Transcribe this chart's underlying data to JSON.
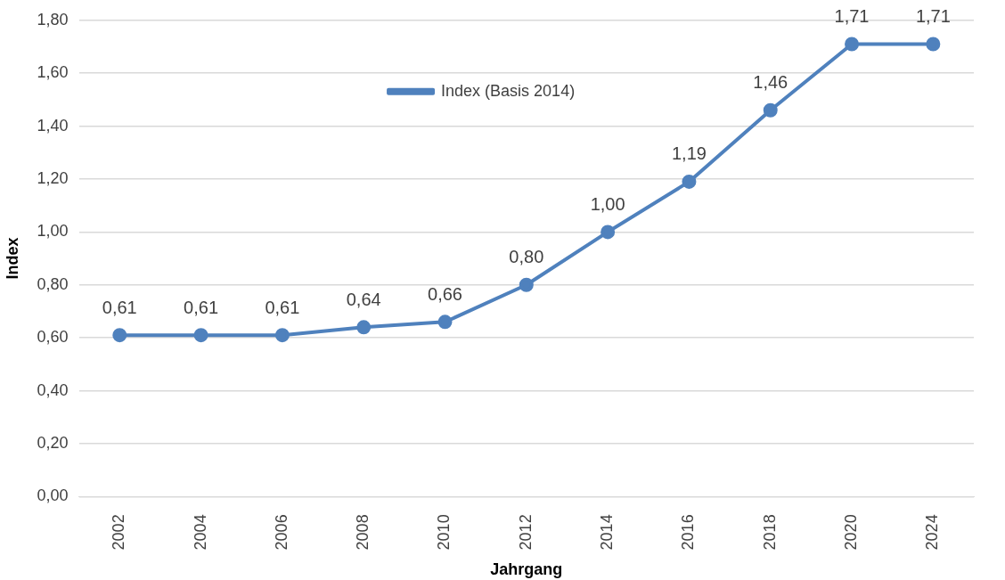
{
  "chart_data": {
    "type": "line",
    "xlabel": "Jahrgang",
    "ylabel": "Index",
    "categories": [
      "2002",
      "2004",
      "2006",
      "2008",
      "2010",
      "2012",
      "2014",
      "2016",
      "2018",
      "2020",
      "2024"
    ],
    "series": [
      {
        "name": "Index (Basis 2014)",
        "color": "#4f81bd",
        "values": [
          0.61,
          0.61,
          0.61,
          0.64,
          0.66,
          0.8,
          1.0,
          1.19,
          1.46,
          1.71,
          1.71
        ],
        "value_labels": [
          "0,61",
          "0,61",
          "0,61",
          "0,64",
          "0,66",
          "0,80",
          "1,00",
          "1,19",
          "1,46",
          "1,71",
          "1,71"
        ]
      }
    ],
    "ylim": [
      0,
      1.8
    ],
    "yticks": [
      {
        "value": 0,
        "label": "0,00"
      },
      {
        "value": 0.2,
        "label": "0,20"
      },
      {
        "value": 0.4,
        "label": "0,40"
      },
      {
        "value": 0.6,
        "label": "0,60"
      },
      {
        "value": 0.8,
        "label": "0,80"
      },
      {
        "value": 1,
        "label": "1,00"
      },
      {
        "value": 1.2,
        "label": "1,20"
      },
      {
        "value": 1.4,
        "label": "1,40"
      },
      {
        "value": 1.6,
        "label": "1,60"
      },
      {
        "value": 1.8,
        "label": "1,80"
      }
    ],
    "grid": "y",
    "legend": "top",
    "marker": "circle",
    "line_style": "solid"
  }
}
